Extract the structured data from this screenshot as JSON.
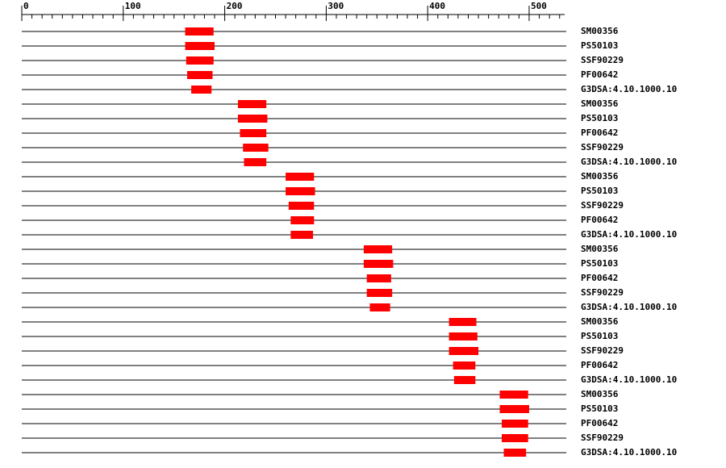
{
  "chart_data": {
    "type": "range",
    "color": "#ff0000",
    "xlim": [
      0,
      535
    ],
    "xticks": [
      0,
      100,
      200,
      300,
      400,
      500
    ],
    "minor_xticks": [
      10,
      20,
      30,
      40,
      50,
      60,
      70,
      80,
      90,
      110,
      120,
      130,
      140,
      150,
      160,
      170,
      180,
      190,
      210,
      220,
      230,
      240,
      250,
      260,
      270,
      280,
      290,
      310,
      320,
      330,
      340,
      350,
      360,
      370,
      380,
      390,
      410,
      420,
      430,
      440,
      450,
      460,
      470,
      480,
      490,
      510,
      520,
      530
    ],
    "rows": [
      {
        "label": "SM00356",
        "start": 161,
        "end": 189
      },
      {
        "label": "PS50103",
        "start": 161,
        "end": 190
      },
      {
        "label": "SSF90229",
        "start": 162,
        "end": 189
      },
      {
        "label": "PF00642",
        "start": 163,
        "end": 188
      },
      {
        "label": "G3DSA:4.10.1000.10",
        "start": 167,
        "end": 187
      },
      {
        "label": "SM00356",
        "start": 213,
        "end": 241
      },
      {
        "label": "PS50103",
        "start": 213,
        "end": 242
      },
      {
        "label": "PF00642",
        "start": 215,
        "end": 241
      },
      {
        "label": "SSF90229",
        "start": 218,
        "end": 243
      },
      {
        "label": "G3DSA:4.10.1000.10",
        "start": 219,
        "end": 241
      },
      {
        "label": "SM00356",
        "start": 260,
        "end": 288
      },
      {
        "label": "PS50103",
        "start": 260,
        "end": 289
      },
      {
        "label": "SSF90229",
        "start": 263,
        "end": 288
      },
      {
        "label": "PF00642",
        "start": 265,
        "end": 288
      },
      {
        "label": "G3DSA:4.10.1000.10",
        "start": 265,
        "end": 287
      },
      {
        "label": "SM00356",
        "start": 337,
        "end": 365
      },
      {
        "label": "PS50103",
        "start": 337,
        "end": 366
      },
      {
        "label": "PF00642",
        "start": 340,
        "end": 364
      },
      {
        "label": "SSF90229",
        "start": 340,
        "end": 365
      },
      {
        "label": "G3DSA:4.10.1000.10",
        "start": 343,
        "end": 363
      },
      {
        "label": "SM00356",
        "start": 421,
        "end": 448
      },
      {
        "label": "PS50103",
        "start": 421,
        "end": 449
      },
      {
        "label": "SSF90229",
        "start": 421,
        "end": 450
      },
      {
        "label": "PF00642",
        "start": 425,
        "end": 447
      },
      {
        "label": "G3DSA:4.10.1000.10",
        "start": 426,
        "end": 447
      },
      {
        "label": "SM00356",
        "start": 471,
        "end": 499
      },
      {
        "label": "PS50103",
        "start": 471,
        "end": 500
      },
      {
        "label": "PF00642",
        "start": 473,
        "end": 499
      },
      {
        "label": "SSF90229",
        "start": 473,
        "end": 499
      },
      {
        "label": "G3DSA:4.10.1000.10",
        "start": 475,
        "end": 497
      }
    ]
  }
}
